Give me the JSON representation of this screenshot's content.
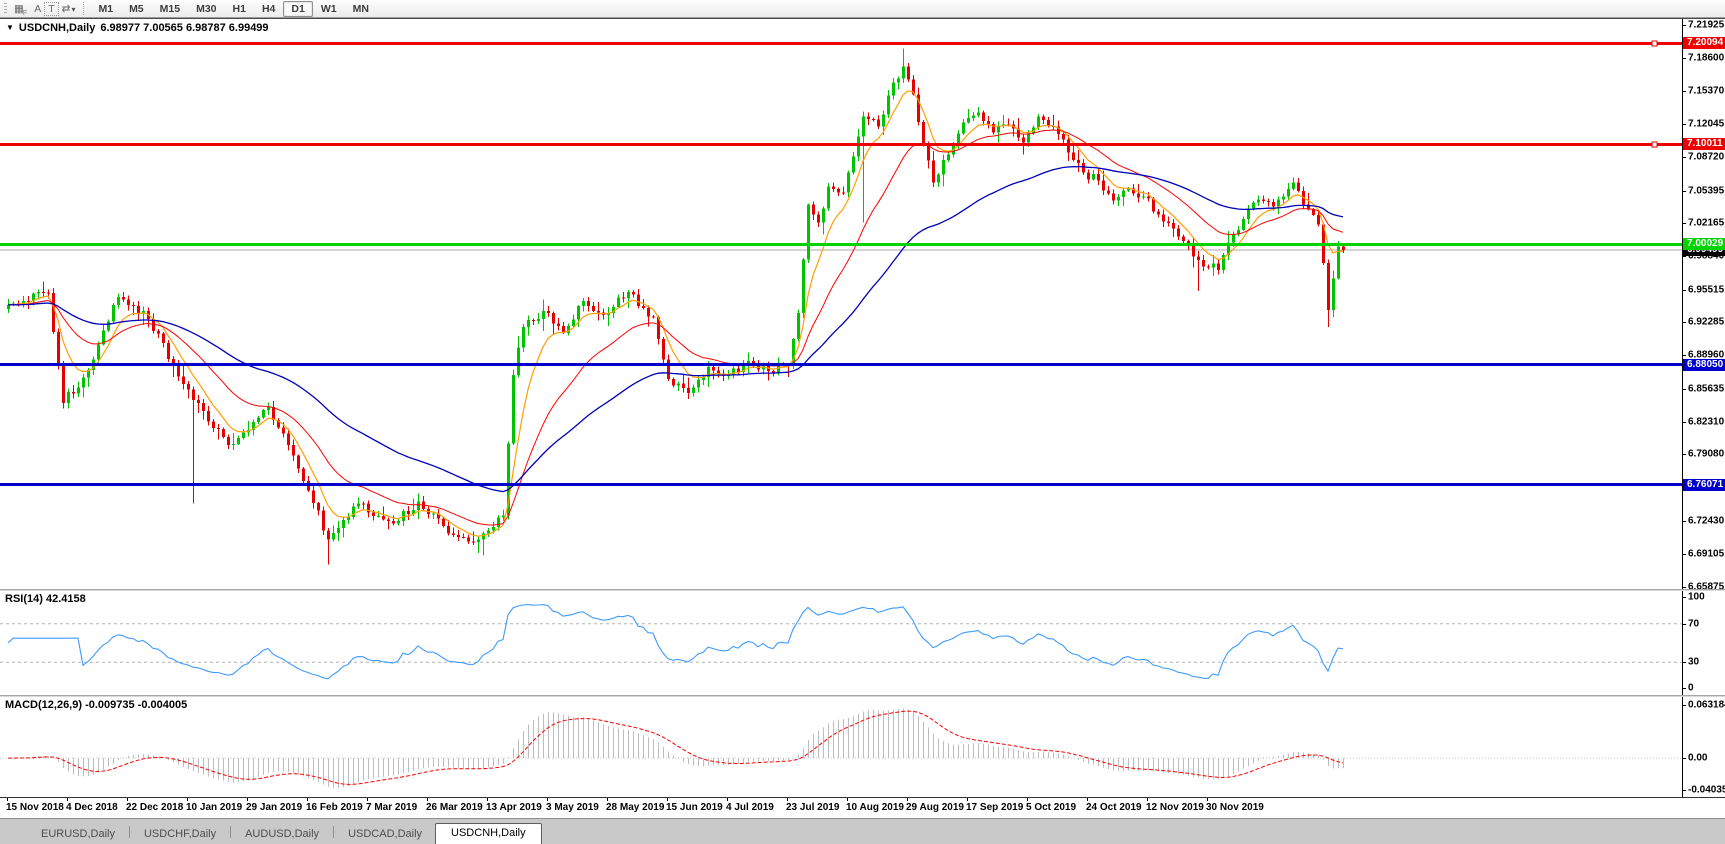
{
  "toolbar": {
    "icons": [
      {
        "name": "snap-grid-icon",
        "glyph": "▦",
        "sub": "F"
      },
      {
        "name": "font-icon",
        "glyph": "A",
        "sub": ""
      },
      {
        "name": "text-select-icon",
        "glyph": "T",
        "sub": "",
        "boxed": true
      },
      {
        "name": "cursor-mode-icon",
        "glyph": "⇄",
        "sub": "",
        "caret": "▾"
      }
    ],
    "timeframes": [
      "M1",
      "M5",
      "M15",
      "M30",
      "H1",
      "H4",
      "D1",
      "W1",
      "MN"
    ],
    "active_timeframe": "D1"
  },
  "chart_title": {
    "dropdown_glyph": "▼",
    "symbol": "USDCNH,Daily",
    "ohlc_text": "6.98977 7.00565 6.98787 6.99499"
  },
  "indicators": {
    "rsi_label": "RSI(14) 42.4158",
    "macd_label": "MACD(12,26,9) -0.009735 -0.004005"
  },
  "tabs": {
    "items": [
      {
        "label": "EURUSD,Daily",
        "active": false
      },
      {
        "label": "USDCHF,Daily",
        "active": false
      },
      {
        "label": "AUDUSD,Daily",
        "active": false
      },
      {
        "label": "USDCAD,Daily",
        "active": false
      },
      {
        "label": "USDCNH,Daily",
        "active": true
      }
    ]
  },
  "chart_data": {
    "type": "candlestick",
    "symbol": "USDCNH",
    "timeframe": "Daily",
    "current_bar": {
      "open": 6.98977,
      "high": 7.00565,
      "low": 6.98787,
      "close": 6.99499
    },
    "bid_price": 6.99499,
    "bid_label": "6.99499",
    "price_axis": {
      "top_price": 7.22525,
      "bottom_price": 6.6565,
      "ticks": [
        "7.21925",
        "7.18600",
        "7.15370",
        "7.12045",
        "7.08720",
        "7.05395",
        "7.02165",
        "6.98840",
        "6.95515",
        "6.92285",
        "6.88960",
        "6.85635",
        "6.82310",
        "6.79080",
        "6.75755",
        "6.72430",
        "6.69105",
        "6.65875"
      ]
    },
    "horizontal_lines": [
      {
        "price": 7.20094,
        "label": "7.20094",
        "color": "#ee0000",
        "width": 3,
        "handle": true
      },
      {
        "price": 7.10011,
        "label": "7.10011",
        "color": "#ee0000",
        "width": 3,
        "handle": true
      },
      {
        "price": 7.00029,
        "label": "7.00029",
        "color": "#00d300",
        "width": 3,
        "handle": false
      },
      {
        "price": 6.8805,
        "label": "6.88050",
        "color": "#0000cc",
        "width": 3,
        "handle": false
      },
      {
        "price": 6.76071,
        "label": "6.76071",
        "color": "#0000cc",
        "width": 3,
        "handle": false
      }
    ],
    "x_dates": [
      "15 Nov 2018",
      "4 Dec 2018",
      "22 Dec 2018",
      "10 Jan 2019",
      "29 Jan 2019",
      "16 Feb 2019",
      "7 Mar 2019",
      "26 Mar 2019",
      "13 Apr 2019",
      "3 May 2019",
      "28 May 2019",
      "15 Jun 2019",
      "4 Jul 2019",
      "23 Jul 2019",
      "10 Aug 2019",
      "29 Aug 2019",
      "17 Sep 2019",
      "5 Oct 2019",
      "24 Oct 2019",
      "12 Nov 2019",
      "30 Nov 2019"
    ],
    "candle_count": 268,
    "up_color": "#00c400",
    "down_color": "#e60000",
    "close_anchors": [
      [
        0,
        6.94
      ],
      [
        8,
        6.952
      ],
      [
        11,
        6.842
      ],
      [
        16,
        6.875
      ],
      [
        22,
        6.948
      ],
      [
        28,
        6.926
      ],
      [
        33,
        6.88
      ],
      [
        37,
        6.845
      ],
      [
        44,
        6.8
      ],
      [
        52,
        6.838
      ],
      [
        56,
        6.8
      ],
      [
        60,
        6.755
      ],
      [
        64,
        6.706
      ],
      [
        70,
        6.742
      ],
      [
        77,
        6.722
      ],
      [
        82,
        6.744
      ],
      [
        88,
        6.712
      ],
      [
        94,
        6.706
      ],
      [
        99,
        6.73
      ],
      [
        101,
        6.87
      ],
      [
        103,
        6.918
      ],
      [
        107,
        6.934
      ],
      [
        111,
        6.912
      ],
      [
        115,
        6.944
      ],
      [
        119,
        6.93
      ],
      [
        124,
        6.953
      ],
      [
        129,
        6.928
      ],
      [
        132,
        6.866
      ],
      [
        136,
        6.852
      ],
      [
        140,
        6.878
      ],
      [
        144,
        6.87
      ],
      [
        148,
        6.884
      ],
      [
        152,
        6.874
      ],
      [
        156,
        6.88
      ],
      [
        158,
        6.932
      ],
      [
        160,
        7.04
      ],
      [
        162,
        7.022
      ],
      [
        164,
        7.058
      ],
      [
        167,
        7.052
      ],
      [
        169,
        7.088
      ],
      [
        171,
        7.128
      ],
      [
        174,
        7.118
      ],
      [
        177,
        7.162
      ],
      [
        179,
        7.178
      ],
      [
        181,
        7.15
      ],
      [
        183,
        7.1
      ],
      [
        185,
        7.062
      ],
      [
        188,
        7.09
      ],
      [
        191,
        7.122
      ],
      [
        194,
        7.132
      ],
      [
        197,
        7.112
      ],
      [
        200,
        7.12
      ],
      [
        203,
        7.102
      ],
      [
        206,
        7.128
      ],
      [
        209,
        7.118
      ],
      [
        212,
        7.092
      ],
      [
        215,
        7.072
      ],
      [
        218,
        7.064
      ],
      [
        221,
        7.044
      ],
      [
        224,
        7.056
      ],
      [
        227,
        7.048
      ],
      [
        230,
        7.03
      ],
      [
        234,
        7.008
      ],
      [
        238,
        6.985
      ],
      [
        242,
        6.975
      ],
      [
        245,
        7.01
      ],
      [
        249,
        7.042
      ],
      [
        253,
        7.038
      ],
      [
        257,
        7.062
      ],
      [
        259,
        7.04
      ],
      [
        262,
        7.02
      ],
      [
        264,
        6.935
      ],
      [
        266,
        6.998
      ],
      [
        267,
        6.99499
      ]
    ],
    "wick_spikes": [
      {
        "i": 37,
        "low": 6.742
      },
      {
        "i": 64,
        "low": 6.681
      },
      {
        "i": 95,
        "low": 6.69
      },
      {
        "i": 171,
        "low": 7.022
      },
      {
        "i": 179,
        "high": 7.196
      },
      {
        "i": 238,
        "low": 6.954
      },
      {
        "i": 264,
        "low": 6.918
      }
    ],
    "moving_averages": [
      {
        "period": 7,
        "color": "#ff9e00",
        "width": 1.2
      },
      {
        "period": 21,
        "color": "#ff0000",
        "width": 1
      },
      {
        "period": 55,
        "color": "#0000bb",
        "width": 1.3
      }
    ],
    "rsi": {
      "period": 14,
      "current": 42.4158,
      "color": "#3e9bff",
      "scale_labels": [
        "100",
        "70",
        "30",
        "0"
      ],
      "dashed_levels": [
        70,
        30
      ]
    },
    "macd": {
      "fast": 12,
      "slow": 26,
      "signal_period": 9,
      "current_macd": -0.009735,
      "current_signal": -0.004005,
      "scale_top": 0.063184,
      "scale_mid": "0.00",
      "scale_bottom": -0.040355,
      "histogram_color": "#bdbdbd",
      "signal_color": "#ff0000"
    }
  }
}
